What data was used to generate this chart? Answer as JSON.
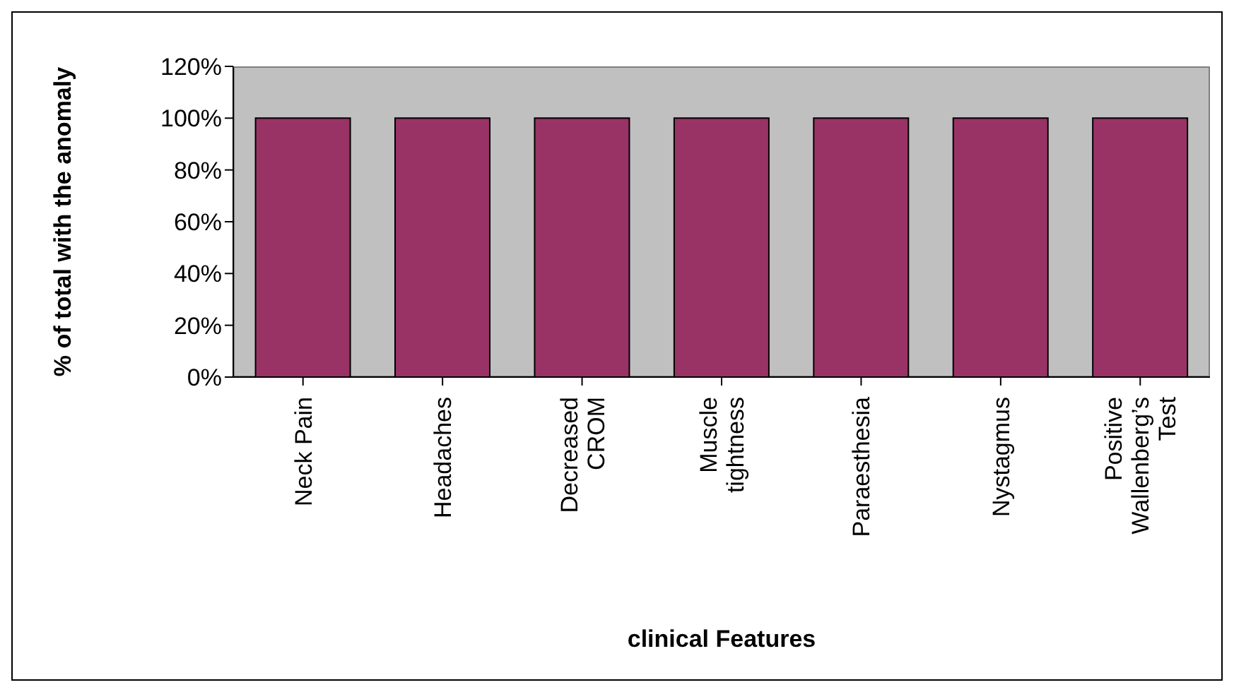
{
  "chart_data": {
    "type": "bar",
    "xlabel": "clinical Features",
    "ylabel": "% of total with the anomaly",
    "categories": [
      "Neck Pain",
      "Headaches",
      "Decreased CROM",
      "Muscle tightness",
      "Paraesthesia",
      "Nystagmus",
      "Positive Wallenberg’s Test"
    ],
    "values": [
      100,
      100,
      100,
      100,
      100,
      100,
      100
    ],
    "color": "#993366",
    "ylim": [
      0,
      120
    ],
    "yticks": [
      {
        "value": 0,
        "label": "0%"
      },
      {
        "value": 20,
        "label": "20%"
      },
      {
        "value": 40,
        "label": "40%"
      },
      {
        "value": 60,
        "label": "60%"
      },
      {
        "value": 80,
        "label": "80%"
      },
      {
        "value": 100,
        "label": "100%"
      },
      {
        "value": 120,
        "label": "120%"
      }
    ],
    "grid": false,
    "legend": false
  }
}
